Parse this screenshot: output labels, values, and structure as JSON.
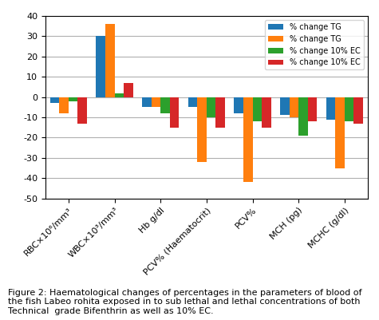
{
  "chart_data": {
    "type": "bar",
    "categories": [
      "RBC×10⁶/mm³",
      "WBC×10³/mm³",
      "Hb g/dl",
      "PCV% (Haematocrit)",
      "PCV%",
      "MCH (pg)",
      "MCHC (g/dl)"
    ],
    "series": [
      {
        "name": "% change TG",
        "values": [
          -3,
          30,
          -5,
          -5,
          -8,
          -9,
          -11
        ]
      },
      {
        "name": "% change TG",
        "values": [
          -8,
          36,
          -5,
          -32,
          -42,
          -10,
          -35
        ]
      },
      {
        "name": "% change 10% EC",
        "values": [
          -2,
          2,
          -8,
          -10,
          -12,
          -19,
          -12
        ]
      },
      {
        "name": "% change 10% EC",
        "values": [
          -13,
          7,
          -15,
          -15,
          -15,
          -12,
          -13
        ]
      }
    ],
    "ylim": [
      -50,
      40
    ],
    "yticks": [
      -50,
      -40,
      -30,
      -20,
      -10,
      0,
      10,
      20,
      30,
      40
    ],
    "grid": true,
    "legend": "upper right",
    "annotations": [
      "Figure 2: Haematological changes of percentages in the parameters of blood of the fish Labeo rohita exposed in to sub lethal and lethal concentrations of both Technical  grade Bifenthrin as well as 10% EC."
    ]
  }
}
